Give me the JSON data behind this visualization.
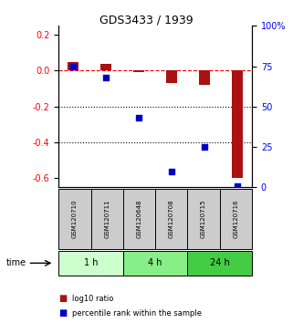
{
  "title": "GDS3433 / 1939",
  "samples": [
    "GSM120710",
    "GSM120711",
    "GSM120648",
    "GSM120708",
    "GSM120715",
    "GSM120716"
  ],
  "groups": [
    {
      "label": "1 h",
      "indices": [
        0,
        1
      ],
      "color": "#ccffcc"
    },
    {
      "label": "4 h",
      "indices": [
        2,
        3
      ],
      "color": "#88ee88"
    },
    {
      "label": "24 h",
      "indices": [
        4,
        5
      ],
      "color": "#44cc44"
    }
  ],
  "log10_ratio": [
    0.05,
    0.04,
    -0.01,
    -0.07,
    -0.08,
    -0.6
  ],
  "percentile_rank": [
    75,
    68,
    43,
    10,
    25,
    1
  ],
  "left_ylim": [
    -0.65,
    0.25
  ],
  "right_ylim": [
    0,
    100
  ],
  "left_yticks": [
    -0.6,
    -0.4,
    -0.2,
    0.0,
    0.2
  ],
  "right_yticks": [
    0,
    25,
    50,
    75,
    100
  ],
  "dotted_lines": [
    -0.2,
    -0.4
  ],
  "bar_color": "#aa1111",
  "point_color": "#0000cc",
  "sample_box_color": "#cccccc",
  "legend_bar_label": "log10 ratio",
  "legend_point_label": "percentile rank within the sample"
}
